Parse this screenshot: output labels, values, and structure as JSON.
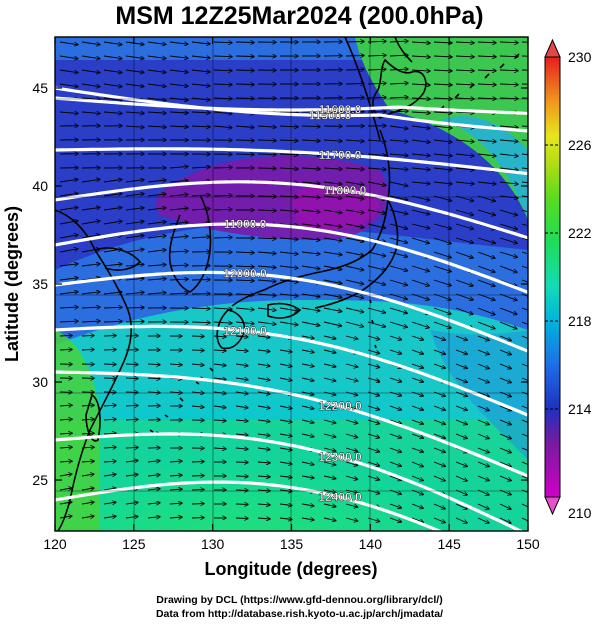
{
  "title": "MSM 12Z25Mar2024 (200.0hPa)",
  "credits": {
    "line1": "Drawing by DCL (https://www.gfd-dennou.org/library/dcl/)",
    "line2": "Data from http://database.rish.kyoto-u.ac.jp/arch/jmadata/"
  },
  "map": {
    "xlabel": "Longitude (degrees)",
    "ylabel": "Latitude  (degrees)",
    "lon_range": [
      120,
      150
    ],
    "lat_range": [
      22.4,
      47.6
    ],
    "lon_ticks": [
      "120",
      "125",
      "130",
      "135",
      "140",
      "145",
      "150"
    ],
    "lat_ticks": [
      "25",
      "30",
      "35",
      "40",
      "45"
    ],
    "contours": [
      {
        "label": "11500.0"
      },
      {
        "label": "11600.0"
      },
      {
        "label": "11700.0"
      },
      {
        "label": "11800.0"
      },
      {
        "label": "11900.0"
      },
      {
        "label": "12000.0"
      },
      {
        "label": "12100.0"
      },
      {
        "label": "12200.0"
      },
      {
        "label": "12300.0"
      },
      {
        "label": "12400.0"
      }
    ]
  },
  "colorbar": {
    "min_label": "210",
    "max_label": "230",
    "tick_labels": [
      "214",
      "218",
      "222",
      "226"
    ],
    "colors": [
      "#c800c8",
      "#7a1aa0",
      "#2020c0",
      "#1e6ee6",
      "#00b4dc",
      "#14dcb4",
      "#1edc64",
      "#46dc1e",
      "#aadc14",
      "#e6e61e",
      "#f0a01e",
      "#f05a1e",
      "#e61e1e"
    ]
  }
}
